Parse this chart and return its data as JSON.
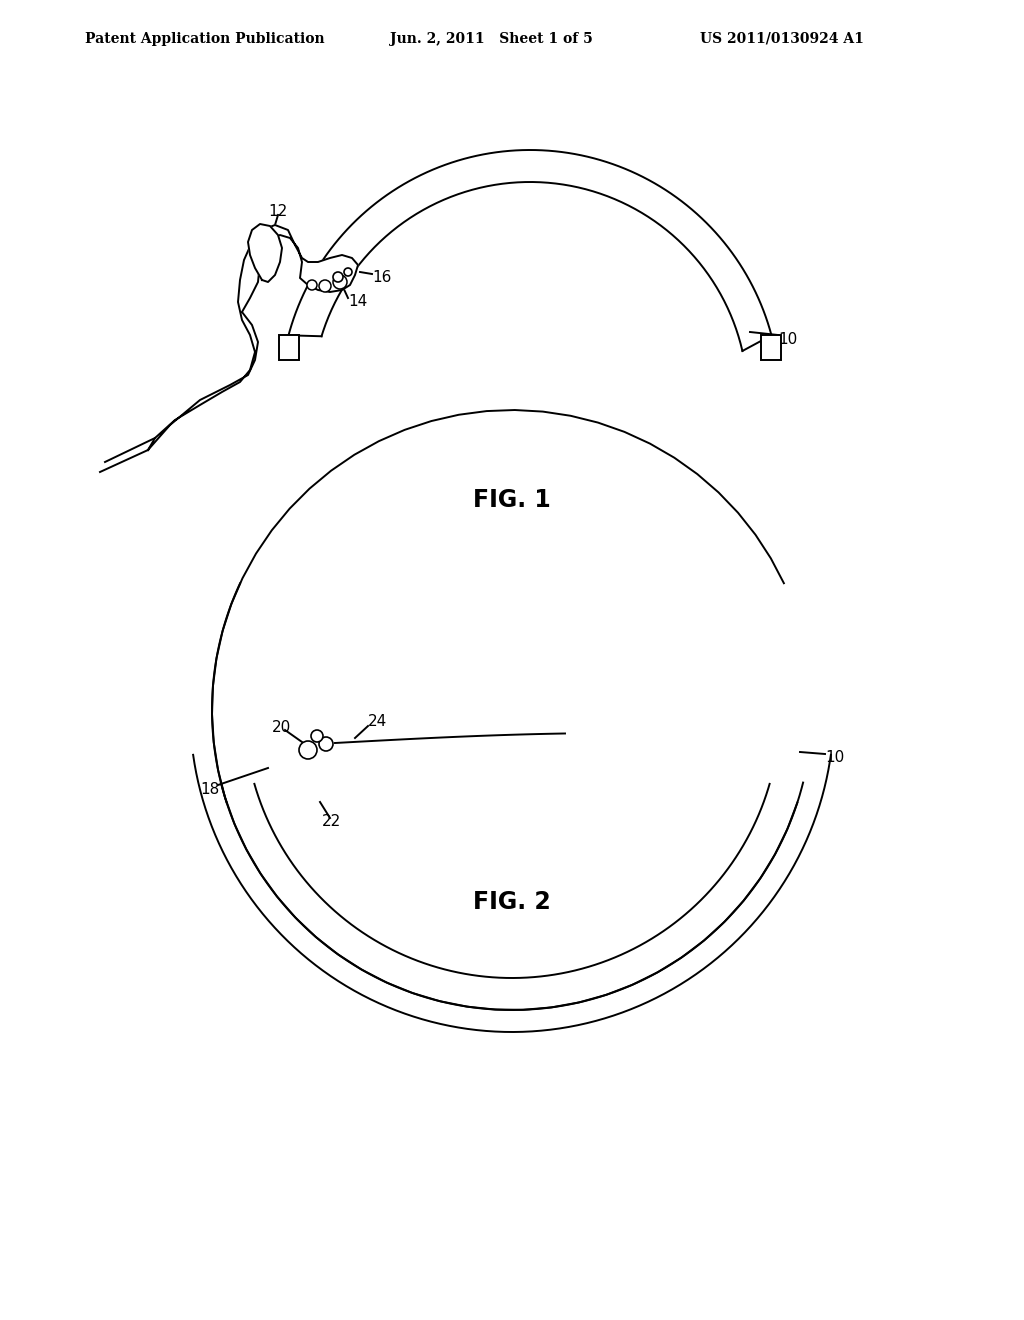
{
  "background_color": "#ffffff",
  "header_left": "Patent Application Publication",
  "header_center": "Jun. 2, 2011   Sheet 1 of 5",
  "header_right": "US 2011/0130924 A1",
  "fig1_label": "FIG. 1",
  "fig2_label": "FIG. 2",
  "label_color": "#000000",
  "line_color": "#000000",
  "label_fontsize": 11,
  "header_fontsize": 10,
  "fig_label_fontsize": 17
}
